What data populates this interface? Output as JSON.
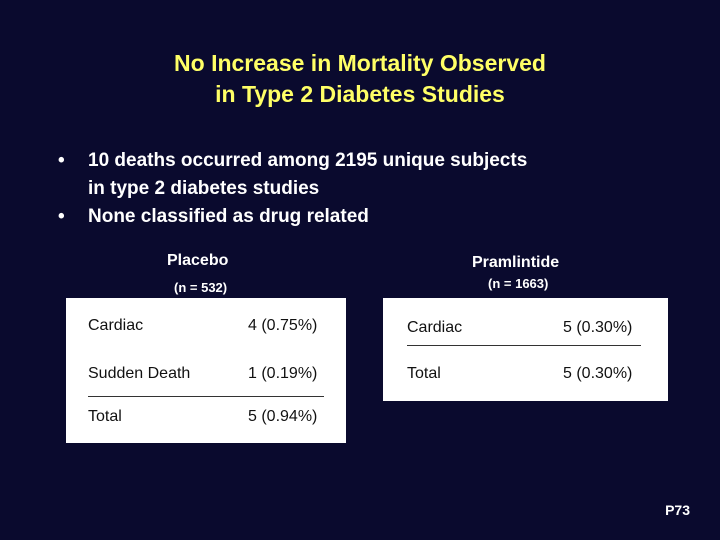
{
  "title": {
    "line1": "No Increase in Mortality Observed",
    "line2": "in Type 2 Diabetes Studies"
  },
  "bullets": [
    {
      "dot": "•",
      "line1": "10 deaths occurred among 2195 unique subjects",
      "line2": "in type 2 diabetes studies"
    },
    {
      "dot": "•",
      "line1": "None classified as drug related"
    }
  ],
  "placebo": {
    "label": "Placebo",
    "n": "(n = 532)",
    "rows": [
      {
        "label": "Cardiac",
        "value": "4 (0.75%)"
      },
      {
        "label": "Sudden Death",
        "value": "1 (0.19%)"
      },
      {
        "label": "Total",
        "value": "5 (0.94%)"
      }
    ]
  },
  "pramlintide": {
    "label": "Pramlintide",
    "n": "(n = 1663)",
    "rows": [
      {
        "label": "Cardiac",
        "value": "5 (0.30%)"
      },
      {
        "label": "Total",
        "value": "5 (0.30%)"
      }
    ]
  },
  "page_number": "P73",
  "colors": {
    "background": "#0a0a2e",
    "title": "#ffff66",
    "box": "#ffffff"
  }
}
